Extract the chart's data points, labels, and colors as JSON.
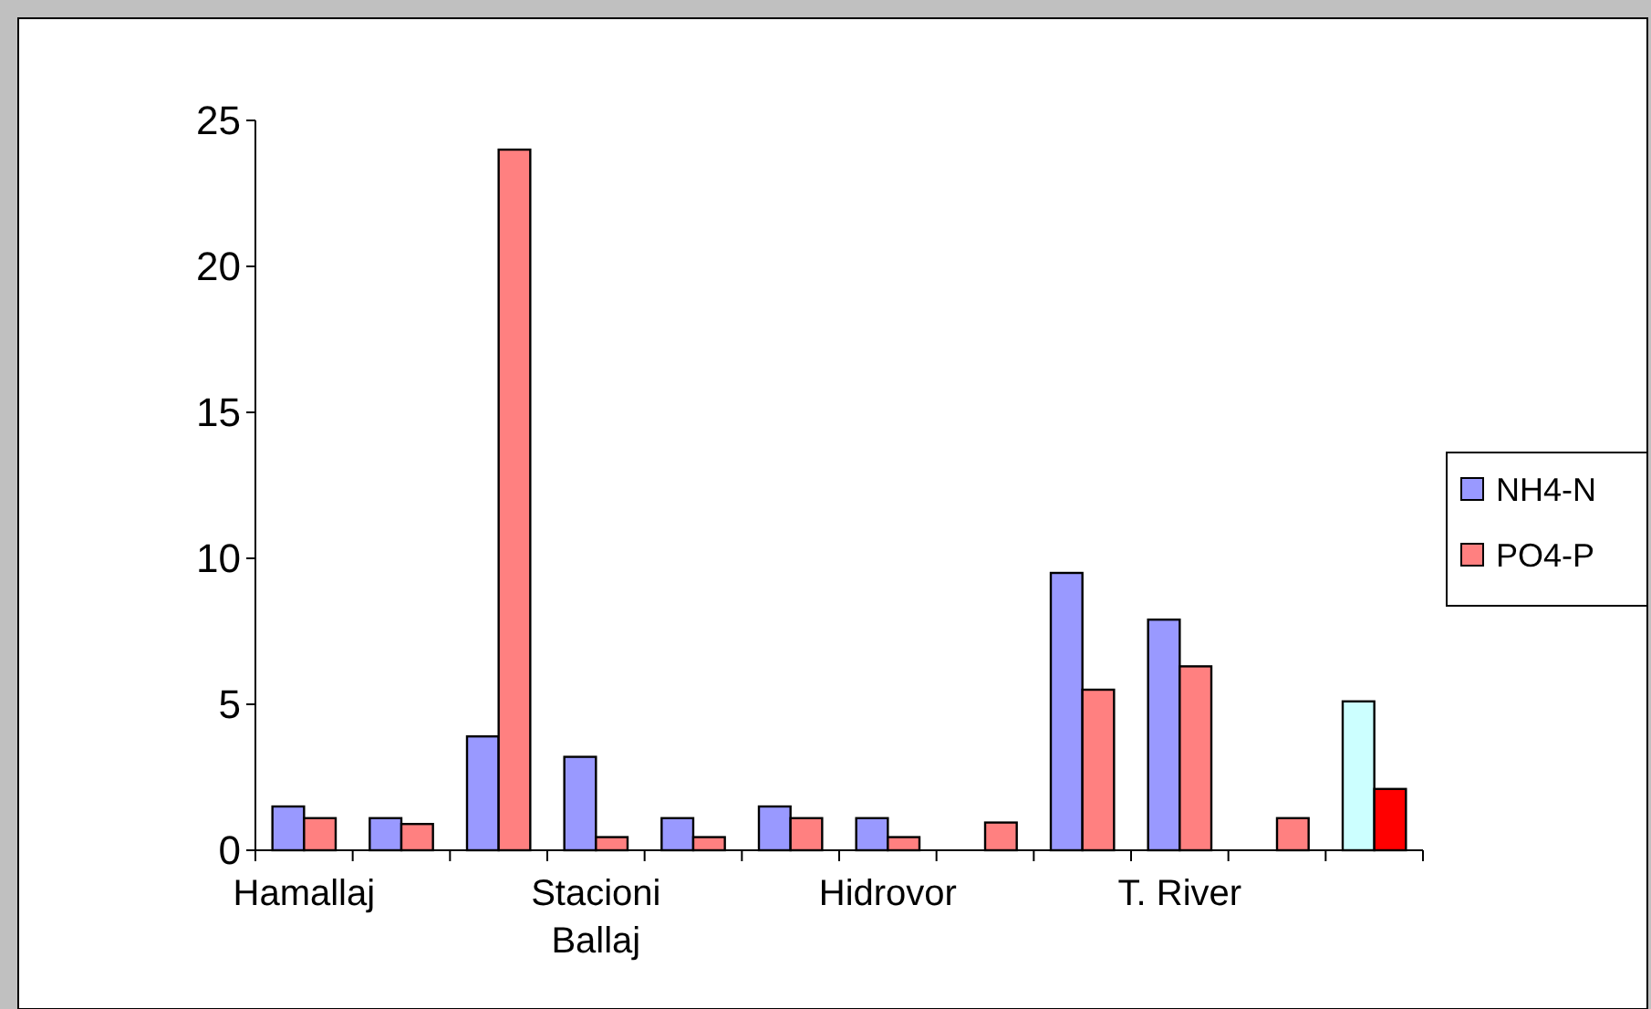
{
  "chart_data": {
    "type": "bar",
    "categories": [
      "Hamallaj",
      null,
      null,
      "Stacioni Ballaj",
      null,
      null,
      "Hidrovor",
      null,
      null,
      "T. River",
      null,
      null
    ],
    "series": [
      {
        "name": "NH4-N",
        "color": "#9999ff",
        "colors": [
          "#9999ff",
          "#9999ff",
          "#9999ff",
          "#9999ff",
          "#9999ff",
          "#9999ff",
          "#9999ff",
          "#9999ff",
          "#9999ff",
          "#9999ff",
          "#9999ff",
          "#ccffff"
        ],
        "values": [
          1.5,
          1.1,
          3.9,
          3.2,
          1.1,
          1.5,
          1.1,
          0,
          9.5,
          7.9,
          0,
          5.1
        ]
      },
      {
        "name": "PO4-P",
        "color": "#ff8080",
        "colors": [
          "#ff8080",
          "#ff8080",
          "#ff8080",
          "#ff8080",
          "#ff8080",
          "#ff8080",
          "#ff8080",
          "#ff8080",
          "#ff8080",
          "#ff8080",
          "#ff8080",
          "#ff0000"
        ],
        "values": [
          1.1,
          0.9,
          24,
          0.45,
          0.45,
          1.1,
          0.45,
          0.95,
          5.5,
          6.3,
          1.1,
          2.1
        ]
      }
    ],
    "ylim": [
      0,
      25
    ],
    "yticks": [
      0,
      5,
      10,
      15,
      20,
      25
    ],
    "grid": false,
    "legend": "right"
  }
}
